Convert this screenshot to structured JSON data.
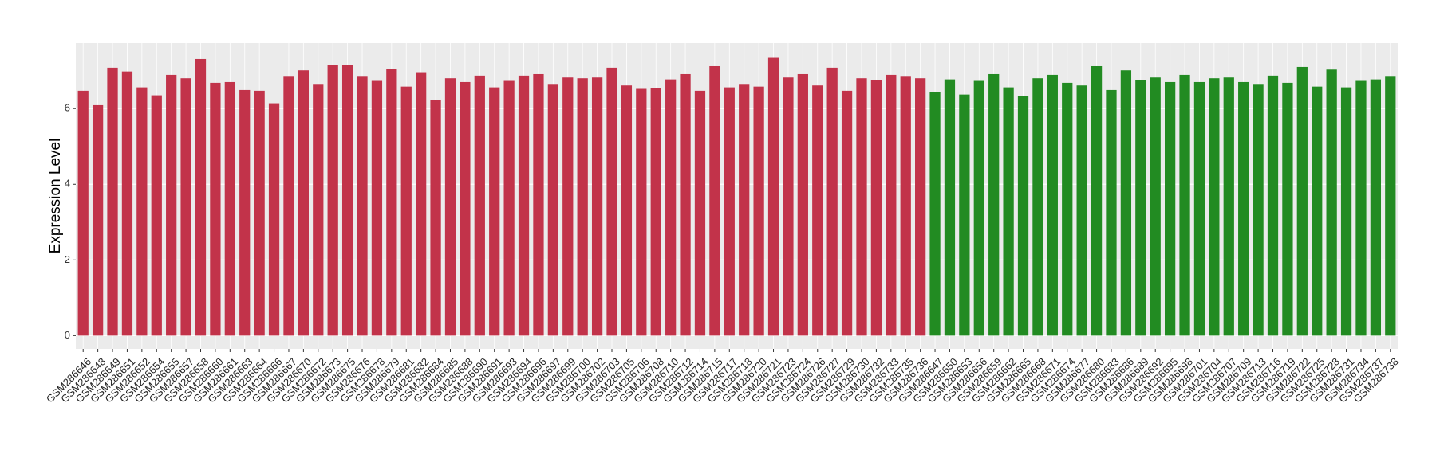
{
  "chart_data": {
    "type": "bar",
    "y_label": "Expression Level",
    "categories": [
      "GSM286646",
      "GSM286648",
      "GSM286649",
      "GSM286651",
      "GSM286652",
      "GSM286654",
      "GSM286655",
      "GSM286657",
      "GSM286658",
      "GSM286660",
      "GSM286661",
      "GSM286663",
      "GSM286664",
      "GSM286666",
      "GSM286667",
      "GSM286670",
      "GSM286672",
      "GSM286673",
      "GSM286675",
      "GSM286676",
      "GSM286678",
      "GSM286679",
      "GSM286681",
      "GSM286682",
      "GSM286684",
      "GSM286685",
      "GSM286688",
      "GSM286690",
      "GSM286691",
      "GSM286693",
      "GSM286694",
      "GSM286696",
      "GSM286697",
      "GSM286699",
      "GSM286700",
      "GSM286702",
      "GSM286703",
      "GSM286705",
      "GSM286706",
      "GSM286708",
      "GSM286710",
      "GSM286712",
      "GSM286714",
      "GSM286715",
      "GSM286717",
      "GSM286718",
      "GSM286720",
      "GSM286721",
      "GSM286723",
      "GSM286724",
      "GSM286726",
      "GSM286727",
      "GSM286729",
      "GSM286730",
      "GSM286732",
      "GSM286733",
      "GSM286735",
      "GSM286736",
      "GSM286647",
      "GSM286650",
      "GSM286653",
      "GSM286656",
      "GSM286659",
      "GSM286662",
      "GSM286665",
      "GSM286668",
      "GSM286671",
      "GSM286674",
      "GSM286677",
      "GSM286680",
      "GSM286683",
      "GSM286686",
      "GSM286689",
      "GSM286692",
      "GSM286695",
      "GSM286698",
      "GSM286701",
      "GSM286704",
      "GSM286707",
      "GSM286709",
      "GSM286713",
      "GSM286716",
      "GSM286719",
      "GSM286722",
      "GSM286725",
      "GSM286728",
      "GSM286731",
      "GSM286734",
      "GSM286737",
      "GSM286738"
    ],
    "series": [
      {
        "color": "#c2334a",
        "values": [
          6.47,
          6.09,
          7.08,
          6.98,
          6.56,
          6.35,
          6.89,
          6.8,
          7.31,
          6.68,
          6.7,
          6.49,
          6.47,
          6.14,
          6.84,
          7.01,
          6.63,
          7.15,
          7.15,
          6.84,
          6.73,
          7.05,
          6.58,
          6.94,
          6.23,
          6.8,
          6.7,
          6.87,
          6.56,
          6.73,
          6.87,
          6.91,
          6.63,
          6.82,
          6.8,
          6.82,
          7.08,
          6.61,
          6.52,
          6.54,
          6.77,
          6.91,
          6.47,
          7.12,
          6.56,
          6.63,
          6.58,
          7.34,
          6.82,
          6.91,
          6.61,
          7.08,
          6.47,
          6.8,
          6.75,
          6.89,
          6.84,
          6.8,
          null,
          null,
          null,
          null,
          null,
          null,
          null,
          null,
          null,
          null,
          null,
          null,
          null,
          null,
          null,
          null,
          null,
          null,
          null,
          null,
          null,
          null,
          null,
          null,
          null,
          null,
          null,
          null,
          null,
          null,
          null,
          null
        ]
      },
      {
        "color": "#228b22",
        "values": [
          null,
          null,
          null,
          null,
          null,
          null,
          null,
          null,
          null,
          null,
          null,
          null,
          null,
          null,
          null,
          null,
          null,
          null,
          null,
          null,
          null,
          null,
          null,
          null,
          null,
          null,
          null,
          null,
          null,
          null,
          null,
          null,
          null,
          null,
          null,
          null,
          null,
          null,
          null,
          null,
          null,
          null,
          null,
          null,
          null,
          null,
          null,
          null,
          null,
          null,
          null,
          null,
          null,
          null,
          null,
          null,
          null,
          null,
          6.44,
          6.77,
          6.37,
          6.73,
          6.91,
          6.56,
          6.33,
          6.8,
          6.89,
          6.68,
          6.61,
          7.12,
          6.49,
          7.01,
          6.75,
          6.82,
          6.7,
          6.89,
          6.7,
          6.8,
          6.82,
          6.7,
          6.63,
          6.87,
          6.68,
          7.1,
          6.58,
          7.03,
          6.56,
          6.73,
          6.77,
          6.84
        ]
      }
    ],
    "ylim": [
      -0.35,
      7.73
    ],
    "yticks": [
      0,
      2,
      4,
      6
    ],
    "grid": true
  }
}
